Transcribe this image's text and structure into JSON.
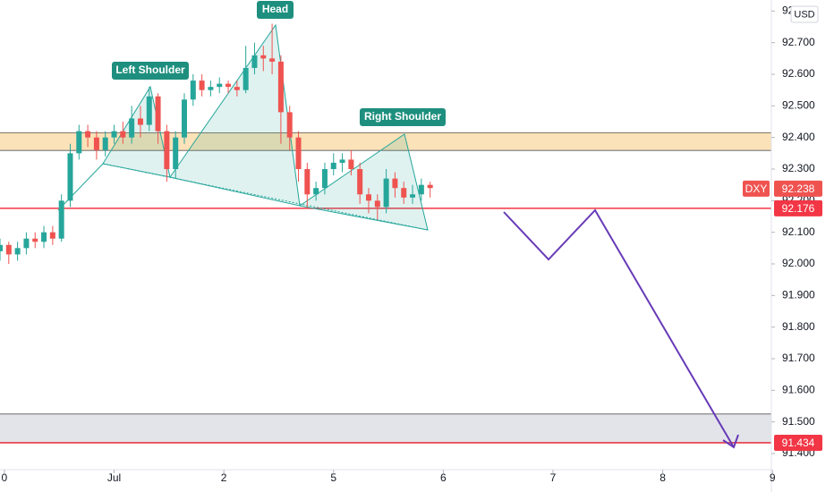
{
  "chart_data": {
    "type": "candlestick",
    "symbol": "DXY",
    "currency": "USD",
    "x": [
      -0.04,
      0.04,
      0.12,
      0.2,
      0.28,
      0.36,
      0.44,
      0.52,
      0.6,
      0.68,
      0.76,
      0.84,
      0.92,
      1.0,
      1.08,
      1.16,
      1.24,
      1.32,
      1.4,
      1.48,
      1.56,
      1.64,
      1.72,
      1.8,
      1.88,
      1.96,
      2.04,
      2.12,
      2.2,
      2.28,
      2.36,
      2.44,
      2.52,
      2.6,
      2.68,
      2.76,
      2.84,
      2.92,
      3.0,
      3.08,
      3.16,
      3.24,
      3.32,
      3.4,
      3.48,
      3.56,
      3.64,
      3.72,
      3.8,
      3.88
    ],
    "open": [
      92.04,
      92.06,
      92.03,
      92.05,
      92.08,
      92.07,
      92.1,
      92.08,
      92.2,
      92.35,
      92.42,
      92.4,
      92.36,
      92.4,
      92.42,
      92.4,
      92.46,
      92.44,
      92.53,
      92.42,
      92.3,
      92.4,
      92.52,
      92.58,
      92.55,
      92.56,
      92.57,
      92.56,
      92.55,
      92.62,
      92.66,
      92.65,
      92.64,
      92.48,
      92.4,
      92.3,
      92.22,
      92.24,
      92.3,
      92.32,
      92.33,
      92.3,
      92.22,
      92.2,
      92.18,
      92.27,
      92.24,
      92.21,
      92.22,
      92.25
    ],
    "high": [
      92.08,
      92.07,
      92.07,
      92.1,
      92.1,
      92.12,
      92.12,
      92.22,
      92.38,
      92.44,
      92.44,
      92.42,
      92.42,
      92.44,
      92.45,
      92.5,
      92.5,
      92.56,
      92.54,
      92.44,
      92.42,
      92.54,
      92.6,
      92.6,
      92.58,
      92.59,
      92.58,
      92.58,
      92.69,
      92.7,
      92.69,
      92.76,
      92.66,
      92.5,
      92.42,
      92.32,
      92.26,
      92.32,
      92.35,
      92.35,
      92.36,
      92.32,
      92.24,
      92.22,
      92.3,
      92.29,
      92.26,
      92.25,
      92.27,
      92.26
    ],
    "low": [
      92.01,
      92.0,
      92.01,
      92.03,
      92.05,
      92.05,
      92.06,
      92.07,
      92.18,
      92.33,
      92.37,
      92.33,
      92.34,
      92.38,
      92.38,
      92.38,
      92.4,
      92.42,
      92.38,
      92.26,
      92.27,
      92.38,
      92.5,
      92.53,
      92.53,
      92.54,
      92.54,
      92.53,
      92.54,
      92.6,
      92.61,
      92.6,
      92.38,
      92.36,
      92.26,
      92.18,
      92.2,
      92.22,
      92.28,
      92.29,
      92.28,
      92.19,
      92.16,
      92.14,
      92.16,
      92.21,
      92.19,
      92.19,
      92.2,
      92.21
    ],
    "close": [
      92.06,
      92.03,
      92.05,
      92.08,
      92.07,
      92.1,
      92.08,
      92.2,
      92.35,
      92.42,
      92.4,
      92.36,
      92.4,
      92.42,
      92.4,
      92.46,
      92.44,
      92.53,
      92.42,
      92.3,
      92.4,
      92.52,
      92.58,
      92.55,
      92.56,
      92.57,
      92.56,
      92.55,
      92.62,
      92.66,
      92.65,
      92.64,
      92.48,
      92.4,
      92.3,
      92.22,
      92.24,
      92.3,
      92.32,
      92.33,
      92.3,
      92.22,
      92.2,
      92.18,
      92.27,
      92.24,
      92.21,
      92.22,
      92.25,
      92.24
    ],
    "up_color": "#26a69a",
    "down_color": "#ef5350",
    "xlim": [
      -0.04,
      6.99
    ],
    "xticks": [
      0,
      {
        "value": 1,
        "label": "Jul"
      },
      2,
      {
        "value": 3,
        "label": "5"
      },
      {
        "value": 4,
        "label": "6"
      },
      {
        "value": 5,
        "label": "7"
      },
      {
        "value": 6,
        "label": "8"
      },
      {
        "value": 7,
        "label": "9"
      }
    ],
    "ylim": [
      91.349,
      92.835
    ],
    "yticks": [
      {
        "value": 91.4,
        "label": "91.400"
      },
      {
        "value": 91.5,
        "label": "91.500"
      },
      {
        "value": 91.6,
        "label": "91.600"
      },
      {
        "value": 91.7,
        "label": "91.700"
      },
      {
        "value": 91.8,
        "label": "91.800"
      },
      {
        "value": 91.9,
        "label": "91.900"
      },
      {
        "value": 92.0,
        "label": "92.000"
      },
      {
        "value": 92.1,
        "label": "92.100"
      },
      {
        "value": 92.2,
        "label": "92.200"
      },
      {
        "value": 92.3,
        "label": "92.300"
      },
      {
        "value": 92.4,
        "label": "92.400"
      },
      {
        "value": 92.5,
        "label": "92.500"
      },
      {
        "value": 92.6,
        "label": "92.600"
      },
      {
        "value": 92.7,
        "label": "92.700"
      },
      {
        "value": 92.8,
        "label": "92.800"
      }
    ],
    "grid": false,
    "last_price": 92.238,
    "levels": [
      {
        "value": 92.176,
        "color": "#f23645"
      },
      {
        "value": 91.434,
        "color": "#f23645"
      }
    ],
    "zones": [
      {
        "from": 92.359,
        "to": 92.415,
        "color": "#fbe2b8"
      },
      {
        "from": 91.435,
        "to": 91.525,
        "color": "#e3e4ea"
      }
    ],
    "annotations": [
      "Left Shoulder",
      "Head",
      "Right Shoulder"
    ]
  }
}
